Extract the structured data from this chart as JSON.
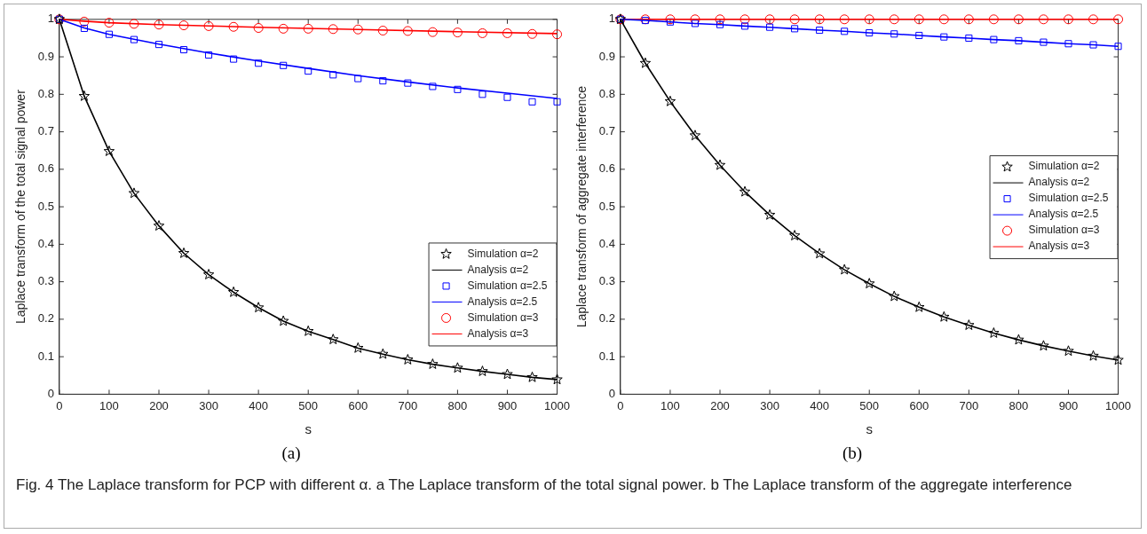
{
  "chart_data": [
    {
      "type": "line",
      "xlabel": "s",
      "ylabel": "Laplace transform of the total signal power",
      "x": [
        0,
        50,
        100,
        150,
        200,
        250,
        300,
        350,
        400,
        450,
        500,
        550,
        600,
        650,
        700,
        750,
        800,
        850,
        900,
        950,
        1000
      ],
      "xlim": [
        0,
        1000
      ],
      "xticks": [
        0,
        100,
        200,
        300,
        400,
        500,
        600,
        700,
        800,
        900,
        1000
      ],
      "ylim": [
        0,
        1
      ],
      "yticks": [
        0,
        0.1,
        0.2,
        0.3,
        0.4,
        0.5,
        0.6,
        0.7,
        0.8,
        0.9,
        1
      ],
      "grid": false,
      "legend": "bottom right",
      "annotations": [
        "(a)",
        "Fig. 4 The Laplace transform for PCP with different α. a The Laplace transform of the total signal power. b The Laplace transform of the aggregate interference"
      ],
      "series": [
        {
          "name": "Simulation α=2",
          "type": "scatter",
          "marker": "star",
          "color": "#000000",
          "values": [
            1,
            0.795,
            0.648,
            0.536,
            0.449,
            0.376,
            0.319,
            0.272,
            0.231,
            0.195,
            0.168,
            0.146,
            0.123,
            0.107,
            0.092,
            0.08,
            0.07,
            0.061,
            0.053,
            0.045,
            0.039
          ]
        },
        {
          "name": "Analysis α=2",
          "type": "line",
          "marker": "none",
          "color": "#000000",
          "values": [
            1,
            0.795,
            0.648,
            0.536,
            0.449,
            0.376,
            0.319,
            0.272,
            0.231,
            0.195,
            0.168,
            0.146,
            0.123,
            0.107,
            0.092,
            0.08,
            0.07,
            0.061,
            0.053,
            0.045,
            0.039
          ]
        },
        {
          "name": "Simulation α=2.5",
          "type": "scatter",
          "marker": "square",
          "color": "#0000ff",
          "values": [
            1,
            0.976,
            0.96,
            0.946,
            0.933,
            0.919,
            0.905,
            0.894,
            0.883,
            0.877,
            0.862,
            0.852,
            0.842,
            0.836,
            0.83,
            0.821,
            0.813,
            0.8,
            0.792,
            0.78,
            0.78
          ]
        },
        {
          "name": "Analysis α=2.5",
          "type": "line",
          "marker": "none",
          "color": "#0000ff",
          "x": [
            0,
            50,
            100,
            200,
            300,
            400,
            500,
            600,
            700,
            800,
            900,
            1000
          ],
          "values": [
            1,
            0.977,
            0.96,
            0.934,
            0.91,
            0.889,
            0.869,
            0.85,
            0.833,
            0.817,
            0.803,
            0.789
          ]
        },
        {
          "name": "Simulation α=3",
          "type": "scatter",
          "marker": "circle",
          "color": "#ff0000",
          "values": [
            1,
            0.994,
            0.991,
            0.988,
            0.986,
            0.984,
            0.982,
            0.98,
            0.977,
            0.975,
            0.975,
            0.974,
            0.973,
            0.97,
            0.969,
            0.966,
            0.965,
            0.963,
            0.963,
            0.961,
            0.96
          ]
        },
        {
          "name": "Analysis α=3",
          "type": "line",
          "marker": "none",
          "color": "#ff0000",
          "x": [
            0,
            50,
            100,
            200,
            400,
            600,
            800,
            1000
          ],
          "values": [
            1,
            0.995,
            0.991,
            0.986,
            0.979,
            0.973,
            0.967,
            0.962
          ]
        }
      ]
    },
    {
      "type": "line",
      "xlabel": "s",
      "ylabel": "Laplace transform of aggregate interference",
      "x": [
        0,
        50,
        100,
        150,
        200,
        250,
        300,
        350,
        400,
        450,
        500,
        550,
        600,
        650,
        700,
        750,
        800,
        850,
        900,
        950,
        1000
      ],
      "xlim": [
        0,
        1000
      ],
      "xticks": [
        0,
        100,
        200,
        300,
        400,
        500,
        600,
        700,
        800,
        900,
        1000
      ],
      "ylim": [
        0,
        1
      ],
      "yticks": [
        0,
        0.1,
        0.2,
        0.3,
        0.4,
        0.5,
        0.6,
        0.7,
        0.8,
        0.9,
        1
      ],
      "grid": false,
      "legend": "right",
      "annotations": [
        "(b)"
      ],
      "series": [
        {
          "name": "Simulation α=2",
          "type": "scatter",
          "marker": "star",
          "color": "#000000",
          "values": [
            1,
            0.883,
            0.781,
            0.69,
            0.611,
            0.54,
            0.478,
            0.423,
            0.375,
            0.332,
            0.295,
            0.261,
            0.232,
            0.206,
            0.184,
            0.163,
            0.145,
            0.129,
            0.115,
            0.102,
            0.091
          ]
        },
        {
          "name": "Analysis α=2",
          "type": "line",
          "marker": "none",
          "color": "#000000",
          "values": [
            1,
            0.883,
            0.781,
            0.69,
            0.611,
            0.54,
            0.478,
            0.423,
            0.375,
            0.332,
            0.295,
            0.261,
            0.232,
            0.206,
            0.184,
            0.163,
            0.145,
            0.129,
            0.115,
            0.102,
            0.091
          ]
        },
        {
          "name": "Simulation α=2.5",
          "type": "scatter",
          "marker": "square",
          "color": "#0000ff",
          "values": [
            1,
            0.997,
            0.993,
            0.989,
            0.986,
            0.982,
            0.979,
            0.975,
            0.971,
            0.968,
            0.964,
            0.961,
            0.957,
            0.953,
            0.95,
            0.946,
            0.943,
            0.939,
            0.935,
            0.932,
            0.928
          ]
        },
        {
          "name": "Analysis α=2.5",
          "type": "line",
          "marker": "none",
          "color": "#0000ff",
          "values": [
            1,
            0.997,
            0.993,
            0.989,
            0.986,
            0.982,
            0.979,
            0.975,
            0.971,
            0.968,
            0.964,
            0.961,
            0.957,
            0.953,
            0.95,
            0.946,
            0.943,
            0.939,
            0.935,
            0.932,
            0.928
          ]
        },
        {
          "name": "Simulation α=3",
          "type": "scatter",
          "marker": "circle",
          "color": "#ff0000",
          "values": [
            1,
            1,
            1,
            1,
            1,
            1,
            1,
            1,
            1,
            1,
            1,
            1,
            1,
            1,
            1,
            1,
            1,
            1,
            1,
            1,
            1
          ]
        },
        {
          "name": "Analysis α=3",
          "type": "line",
          "marker": "none",
          "color": "#ff0000",
          "x": [
            0,
            1000
          ],
          "values": [
            1,
            1
          ]
        }
      ]
    }
  ]
}
